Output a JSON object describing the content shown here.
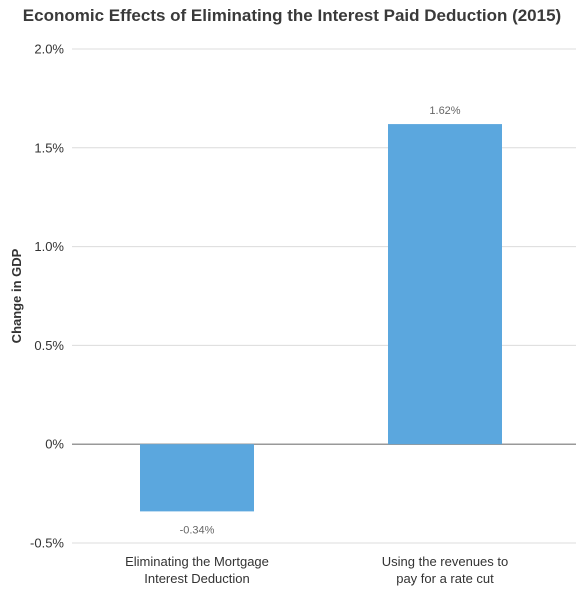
{
  "chart_data": {
    "type": "bar",
    "title": "Economic Effects of Eliminating the Interest Paid Deduction (2015)",
    "xlabel": "",
    "ylabel": "Change in GDP",
    "categories": [
      [
        "Eliminating the Mortgage",
        "Interest Deduction"
      ],
      [
        "Using the revenues to",
        "pay for a rate cut"
      ]
    ],
    "values": [
      -0.34,
      1.62
    ],
    "data_labels": [
      "-0.34%",
      "1.62%"
    ],
    "ylim": [
      -0.5,
      2.0
    ],
    "yticks": [
      -0.5,
      0,
      0.5,
      1.0,
      1.5,
      2.0
    ],
    "ytick_labels": [
      "-0.5%",
      "0%",
      "0.5%",
      "1.0%",
      "1.5%",
      "2.0%"
    ],
    "grid": true,
    "bar_color": "#5ba7de",
    "grid_color": "#dcdcdc",
    "zero_line_color": "#999999"
  }
}
